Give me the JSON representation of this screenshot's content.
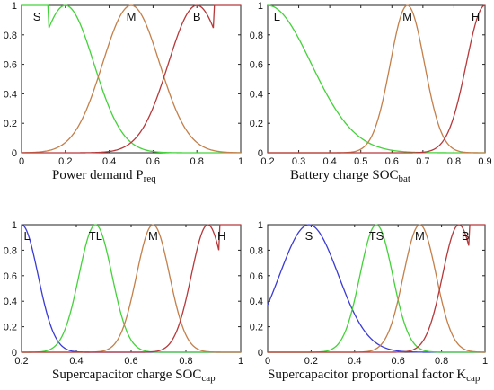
{
  "figure": {
    "colors": {
      "green": "#44d23a",
      "orange": "#c47f4a",
      "red": "#b6383a",
      "blue": "#3b3bd4"
    }
  },
  "chart_data": [
    {
      "type": "line",
      "name": "power-demand",
      "xlabel_main": "Power demand P",
      "xlabel_sub": "req",
      "xlim": [
        0,
        1
      ],
      "ylim": [
        0,
        1
      ],
      "xticks": [
        0,
        0.2,
        0.4,
        0.6,
        0.8,
        1
      ],
      "xtick_labels": [
        "0",
        "0.2",
        "0.4",
        "0.6",
        "0.8",
        "1"
      ],
      "yticks": [
        0,
        0.2,
        0.4,
        0.6,
        0.8,
        1
      ],
      "ytick_labels": [
        "0",
        "0.2",
        "0.4",
        "0.6",
        "0.8",
        "1"
      ],
      "series": [
        {
          "name": "S",
          "color": "green",
          "shape": "z",
          "params": {
            "center": 0.2,
            "sigma": 0.13,
            "flat_until": 0.12
          },
          "label_x": 0.07
        },
        {
          "name": "M",
          "color": "orange",
          "shape": "gauss",
          "params": {
            "center": 0.5,
            "sigma": 0.13
          },
          "label_x": 0.5
        },
        {
          "name": "B",
          "color": "red",
          "shape": "s",
          "params": {
            "center": 0.8,
            "sigma": 0.13,
            "flat_from": 0.88
          },
          "label_x": 0.8
        }
      ]
    },
    {
      "type": "line",
      "name": "battery-charge",
      "xlabel_main": "Battery charge SOC",
      "xlabel_sub": "bat",
      "xlim": [
        0.2,
        0.9
      ],
      "ylim": [
        0,
        1
      ],
      "xticks": [
        0.2,
        0.3,
        0.4,
        0.5,
        0.6,
        0.7,
        0.8,
        0.9
      ],
      "xtick_labels": [
        "0.2",
        "0.3",
        "0.4",
        "0.5",
        "0.6",
        "0.7",
        "0.8",
        "0.9"
      ],
      "yticks": [
        0,
        0.2,
        0.4,
        0.6,
        0.8,
        1
      ],
      "ytick_labels": [
        "0",
        "0.2",
        "0.4",
        "0.6",
        "0.8",
        "1"
      ],
      "series": [
        {
          "name": "L",
          "color": "green",
          "shape": "z",
          "params": {
            "center": 0.2,
            "sigma": 0.14,
            "flat_until": 0.2
          },
          "label_x": 0.23
        },
        {
          "name": "M",
          "color": "orange",
          "shape": "gauss",
          "params": {
            "center": 0.65,
            "sigma": 0.055
          },
          "label_x": 0.65
        },
        {
          "name": "H",
          "color": "red",
          "shape": "s",
          "params": {
            "center": 0.9,
            "sigma": 0.06,
            "flat_from": 0.9
          },
          "label_x": 0.87
        }
      ]
    },
    {
      "type": "line",
      "name": "supercapacitor-charge",
      "xlabel_main": "Supercapacitor charge SOC",
      "xlabel_sub": "cap",
      "xlim": [
        0.2,
        1
      ],
      "ylim": [
        0,
        1
      ],
      "xticks": [
        0.2,
        0.4,
        0.6,
        0.8,
        1
      ],
      "xtick_labels": [
        "0.2",
        "0.4",
        "0.6",
        "0.8",
        "1"
      ],
      "yticks": [
        0,
        0.2,
        0.4,
        0.6,
        0.8,
        1
      ],
      "ytick_labels": [
        "0",
        "0.2",
        "0.4",
        "0.6",
        "0.8",
        "1"
      ],
      "series": [
        {
          "name": "L",
          "color": "blue",
          "shape": "z",
          "params": {
            "center": 0.2,
            "sigma": 0.06,
            "flat_until": 0.2
          },
          "label_x": 0.22
        },
        {
          "name": "TL",
          "color": "green",
          "shape": "gauss",
          "params": {
            "center": 0.47,
            "sigma": 0.06
          },
          "label_x": 0.47
        },
        {
          "name": "M",
          "color": "orange",
          "shape": "gauss",
          "params": {
            "center": 0.68,
            "sigma": 0.06
          },
          "label_x": 0.68
        },
        {
          "name": "H",
          "color": "red",
          "shape": "s",
          "params": {
            "center": 0.88,
            "sigma": 0.06,
            "flat_from": 0.92
          },
          "label_x": 0.93
        }
      ]
    },
    {
      "type": "line",
      "name": "supercapacitor-factor",
      "xlabel_main": "Supercapacitor proportional factor K",
      "xlabel_sub": "cap",
      "xlim": [
        0,
        1
      ],
      "ylim": [
        0,
        1
      ],
      "xticks": [
        0,
        0.2,
        0.4,
        0.6,
        0.8,
        1
      ],
      "xtick_labels": [
        "0",
        "0.2",
        "0.4",
        "0.6",
        "0.8",
        "1"
      ],
      "yticks": [
        0,
        0.2,
        0.4,
        0.6,
        0.8,
        1
      ],
      "ytick_labels": [
        "0",
        "0.2",
        "0.4",
        "0.6",
        "0.8",
        "1"
      ],
      "series": [
        {
          "name": "S",
          "color": "blue",
          "shape": "gauss",
          "params": {
            "center": 0.19,
            "sigma": 0.135
          },
          "label_x": 0.19
        },
        {
          "name": "TS",
          "color": "green",
          "shape": "gauss",
          "params": {
            "center": 0.5,
            "sigma": 0.075
          },
          "label_x": 0.5
        },
        {
          "name": "M",
          "color": "orange",
          "shape": "gauss",
          "params": {
            "center": 0.7,
            "sigma": 0.075
          },
          "label_x": 0.7
        },
        {
          "name": "B",
          "color": "red",
          "shape": "s",
          "params": {
            "center": 0.88,
            "sigma": 0.075,
            "flat_from": 0.93
          },
          "label_x": 0.91
        }
      ]
    }
  ]
}
